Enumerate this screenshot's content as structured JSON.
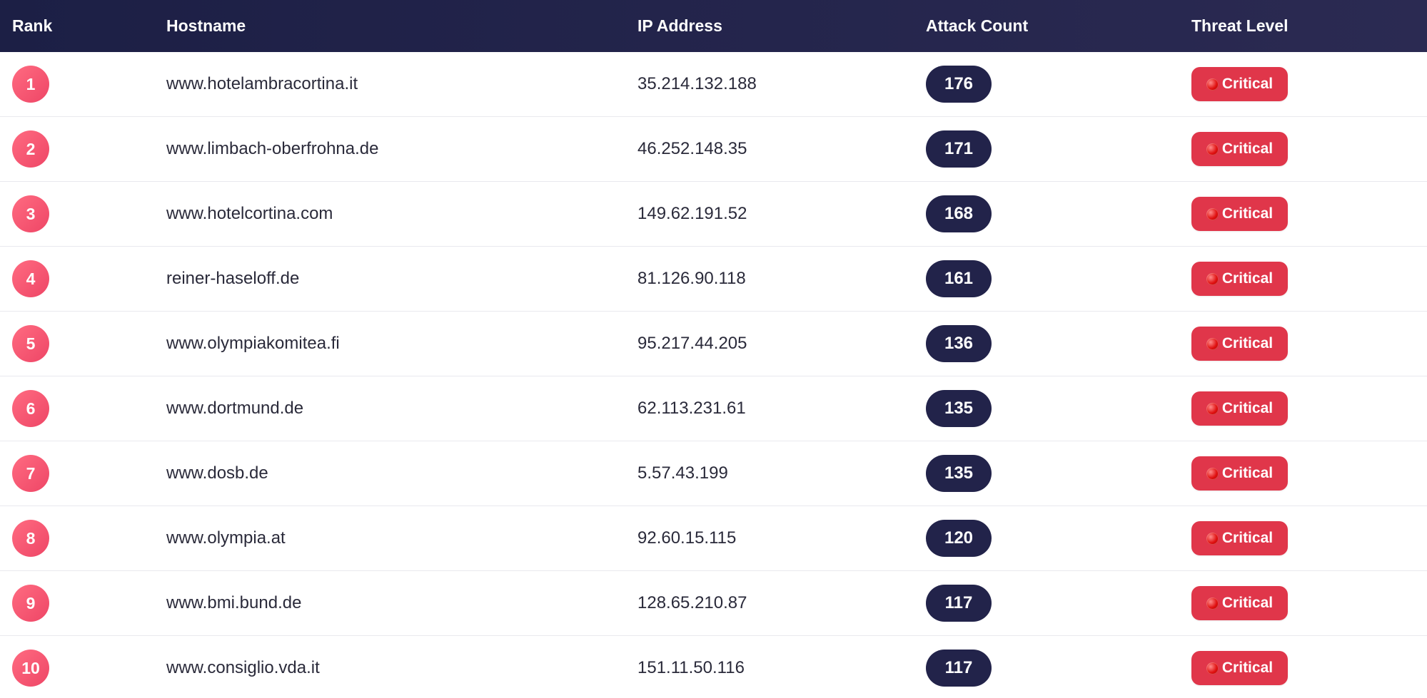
{
  "table": {
    "headers": {
      "rank": "Rank",
      "hostname": "Hostname",
      "ip": "IP Address",
      "count": "Attack Count",
      "threat": "Threat Level"
    },
    "rows": [
      {
        "rank": "1",
        "hostname": "www.hotelambracortina.it",
        "ip": "35.214.132.188",
        "count": "176",
        "threat": "Critical"
      },
      {
        "rank": "2",
        "hostname": "www.limbach-oberfrohna.de",
        "ip": "46.252.148.35",
        "count": "171",
        "threat": "Critical"
      },
      {
        "rank": "3",
        "hostname": "www.hotelcortina.com",
        "ip": "149.62.191.52",
        "count": "168",
        "threat": "Critical"
      },
      {
        "rank": "4",
        "hostname": "reiner-haseloff.de",
        "ip": "81.126.90.118",
        "count": "161",
        "threat": "Critical"
      },
      {
        "rank": "5",
        "hostname": "www.olympiakomitea.fi",
        "ip": "95.217.44.205",
        "count": "136",
        "threat": "Critical"
      },
      {
        "rank": "6",
        "hostname": "www.dortmund.de",
        "ip": "62.113.231.61",
        "count": "135",
        "threat": "Critical"
      },
      {
        "rank": "7",
        "hostname": "www.dosb.de",
        "ip": "5.57.43.199",
        "count": "135",
        "threat": "Critical"
      },
      {
        "rank": "8",
        "hostname": "www.olympia.at",
        "ip": "92.60.15.115",
        "count": "120",
        "threat": "Critical"
      },
      {
        "rank": "9",
        "hostname": "www.bmi.bund.de",
        "ip": "128.65.210.87",
        "count": "117",
        "threat": "Critical"
      },
      {
        "rank": "10",
        "hostname": "www.consiglio.vda.it",
        "ip": "151.11.50.116",
        "count": "117",
        "threat": "Critical"
      }
    ]
  },
  "colors": {
    "header_bg": "#1c1f45",
    "rank_badge": "#ff5a78",
    "count_pill": "#22234a",
    "threat_critical": "#e0364a"
  },
  "icons": {
    "threat_indicator": "red-circle-icon"
  }
}
